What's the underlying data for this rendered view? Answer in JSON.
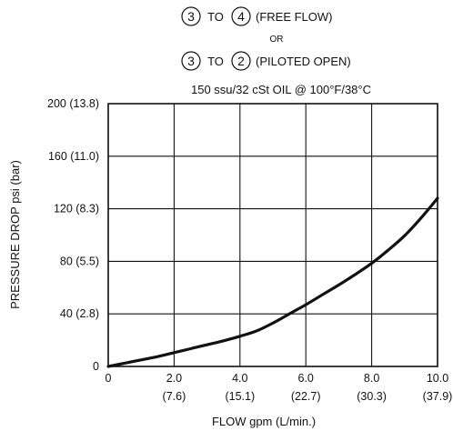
{
  "chart_data": {
    "type": "line",
    "title": {
      "line1": {
        "from": "3",
        "connector": "TO",
        "to": "4",
        "note": "(FREE FLOW)"
      },
      "line2": "OR",
      "line3": {
        "from": "3",
        "connector": "TO",
        "to": "2",
        "note": "(PILOTED OPEN)"
      },
      "subtitle": "150 ssu/32 cSt OIL @ 100°F/38°C"
    },
    "xlabel": "FLOW gpm (L/min.)",
    "ylabel": "PRESSURE  DROP psi  (bar)",
    "xlim": [
      0,
      10
    ],
    "ylim": [
      0,
      200
    ],
    "grid": true,
    "x_ticks": [
      {
        "value": 0,
        "label": "0",
        "sublabel": ""
      },
      {
        "value": 2,
        "label": "2.0",
        "sublabel": "(7.6)"
      },
      {
        "value": 4,
        "label": "4.0",
        "sublabel": "(15.1)"
      },
      {
        "value": 6,
        "label": "6.0",
        "sublabel": "(22.7)"
      },
      {
        "value": 8,
        "label": "8.0",
        "sublabel": "(30.3)"
      },
      {
        "value": 10,
        "label": "10.0",
        "sublabel": "(37.9)"
      }
    ],
    "y_ticks": [
      {
        "value": 0,
        "label": "0"
      },
      {
        "value": 40,
        "label": "40 (2.8)"
      },
      {
        "value": 80,
        "label": "80 (5.5)"
      },
      {
        "value": 120,
        "label": "120 (8.3)"
      },
      {
        "value": 160,
        "label": "160 (11.0)"
      },
      {
        "value": 200,
        "label": "200 (13.8)"
      }
    ],
    "series": [
      {
        "color": "#111111",
        "x": [
          0,
          0.5,
          1.0,
          1.5,
          2.0,
          2.5,
          3.0,
          3.5,
          4.0,
          4.5,
          5.0,
          5.5,
          6.0,
          6.5,
          7.0,
          7.5,
          8.0,
          8.5,
          9.0,
          9.5,
          10.0
        ],
        "y": [
          0,
          2.5,
          5,
          7.5,
          10.5,
          13.5,
          16.5,
          19.5,
          23,
          27,
          33,
          40,
          47,
          54.5,
          62,
          70,
          78.5,
          88.5,
          99.5,
          113,
          128
        ]
      }
    ]
  }
}
